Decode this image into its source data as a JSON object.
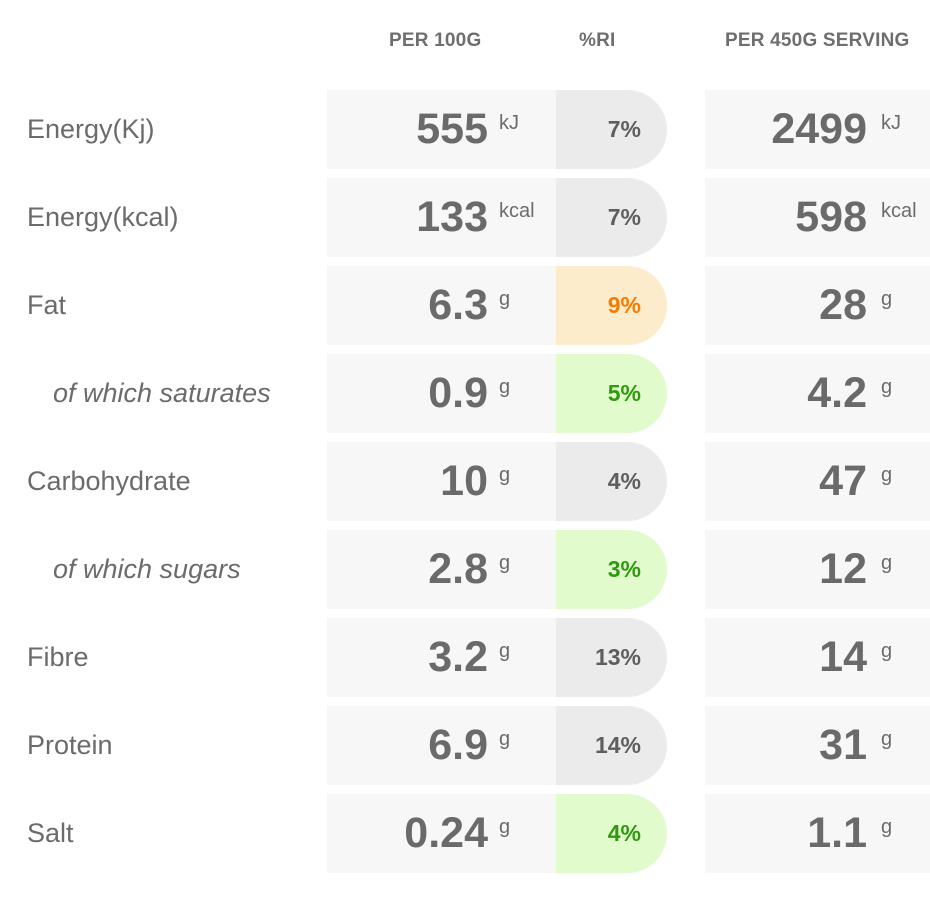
{
  "headers": {
    "per100": "PER 100G",
    "ri": "%RI",
    "serving": "PER 450G SERVING"
  },
  "rows": [
    {
      "label": "Energy(Kj)",
      "sub": false,
      "per100": "555",
      "per100_unit": "kJ",
      "ri": "7%",
      "ri_level": "grey",
      "serving": "2499",
      "serving_unit": "kJ"
    },
    {
      "label": "Energy(kcal)",
      "sub": false,
      "per100": "133",
      "per100_unit": "kcal",
      "ri": "7%",
      "ri_level": "grey",
      "serving": "598",
      "serving_unit": "kcal"
    },
    {
      "label": "Fat",
      "sub": false,
      "per100": "6.3",
      "per100_unit": "g",
      "ri": "9%",
      "ri_level": "amber",
      "serving": "28",
      "serving_unit": "g"
    },
    {
      "label": "of which saturates",
      "sub": true,
      "per100": "0.9",
      "per100_unit": "g",
      "ri": "5%",
      "ri_level": "green",
      "serving": "4.2",
      "serving_unit": "g"
    },
    {
      "label": "Carbohydrate",
      "sub": false,
      "per100": "10",
      "per100_unit": "g",
      "ri": "4%",
      "ri_level": "grey",
      "serving": "47",
      "serving_unit": "g"
    },
    {
      "label": "of which sugars",
      "sub": true,
      "per100": "2.8",
      "per100_unit": "g",
      "ri": "3%",
      "ri_level": "green",
      "serving": "12",
      "serving_unit": "g"
    },
    {
      "label": "Fibre",
      "sub": false,
      "per100": "3.2",
      "per100_unit": "g",
      "ri": "13%",
      "ri_level": "grey",
      "serving": "14",
      "serving_unit": "g"
    },
    {
      "label": "Protein",
      "sub": false,
      "per100": "6.9",
      "per100_unit": "g",
      "ri": "14%",
      "ri_level": "grey",
      "serving": "31",
      "serving_unit": "g"
    },
    {
      "label": "Salt",
      "sub": false,
      "per100": "0.24",
      "per100_unit": "g",
      "ri": "4%",
      "ri_level": "green",
      "serving": "1.1",
      "serving_unit": "g"
    }
  ],
  "colors": {
    "grey_bg": "#ebebeb",
    "amber_bg": "#fdeccb",
    "amber_text": "#f57c00",
    "green_bg": "#e2fbcd",
    "green_text": "#2f9a0e",
    "cell_bg": "#f7f7f7",
    "text": "#6b6b6b"
  }
}
